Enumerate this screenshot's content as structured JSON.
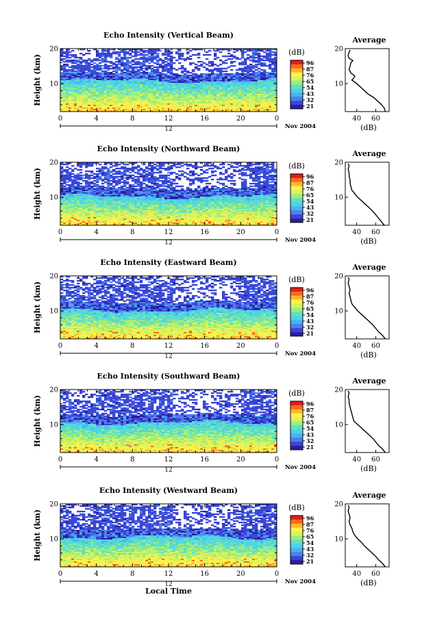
{
  "chart_data": [
    {
      "type": "heatmap",
      "title": "Echo Intensity (Vertical Beam)",
      "ylabel": "Height (km)",
      "x_ticks": [
        "0",
        "4",
        "8",
        "12",
        "16",
        "20",
        "0"
      ],
      "y_ticks": [
        "10",
        "20"
      ],
      "xlim": [
        0,
        24
      ],
      "ylim": [
        2,
        20
      ],
      "colorbar": {
        "label": "(dB)",
        "ticks": [
          "96",
          "87",
          "76",
          "65",
          "54",
          "43",
          "32",
          "21"
        ]
      },
      "date_label": "12",
      "month_label": "Nov 2004",
      "layer": {
        "bottom_km": 9.5,
        "boundary_km": 10.8,
        "gap_km": 13.0,
        "top_km": 20
      },
      "average_profile": {
        "title": "Average",
        "xlabel": "(dB)",
        "x_ticks": [
          "40",
          "60"
        ],
        "y_ticks": [
          "10",
          "20"
        ],
        "xlim": [
          28,
          74
        ],
        "ylim": [
          2,
          20
        ],
        "height_km": [
          2.0,
          3.0,
          4.0,
          5.0,
          6.0,
          7.0,
          8.0,
          9.0,
          10.0,
          10.6,
          11.0,
          11.6,
          12.2,
          13.0,
          14.0,
          15.0,
          16.0,
          16.6,
          17.2,
          18.0,
          19.0,
          19.6
        ],
        "intensity_db": [
          70,
          69,
          66,
          62,
          58,
          52,
          48,
          44,
          40,
          37,
          35,
          37,
          38,
          34,
          32,
          33,
          34,
          36,
          32,
          31,
          32,
          33
        ]
      }
    },
    {
      "type": "heatmap",
      "title": "Echo Intensity (Northward Beam)",
      "ylabel": "Height (km)",
      "x_ticks": [
        "0",
        "4",
        "8",
        "12",
        "16",
        "20",
        "0"
      ],
      "y_ticks": [
        "10",
        "20"
      ],
      "xlim": [
        0,
        24
      ],
      "ylim": [
        2,
        20
      ],
      "colorbar": {
        "label": "(dB)",
        "ticks": [
          "96",
          "87",
          "76",
          "65",
          "54",
          "43",
          "32",
          "21"
        ]
      },
      "date_label": "12",
      "month_label": "Nov 2004",
      "layer": {
        "bottom_km": 8.5,
        "boundary_km": 10.2,
        "gap_km": 12.5,
        "top_km": 18.5
      },
      "average_profile": {
        "title": "Average",
        "xlabel": "(dB)",
        "x_ticks": [
          "40",
          "60"
        ],
        "y_ticks": [
          "10",
          "20"
        ],
        "xlim": [
          28,
          74
        ],
        "ylim": [
          2,
          20
        ],
        "height_km": [
          2.0,
          3.0,
          4.0,
          5.0,
          6.0,
          7.0,
          8.0,
          9.0,
          10.0,
          11.0,
          12.0,
          13.0,
          14.0,
          15.0,
          16.0,
          17.0,
          18.0,
          19.0,
          19.6
        ],
        "intensity_db": [
          69,
          66,
          63,
          60,
          57,
          53,
          49,
          45,
          41,
          38,
          35,
          34,
          33,
          33,
          32,
          32,
          31,
          32,
          31
        ]
      }
    },
    {
      "type": "heatmap",
      "title": "Echo Intensity (Eastward Beam)",
      "ylabel": "Height (km)",
      "x_ticks": [
        "0",
        "4",
        "8",
        "12",
        "16",
        "20",
        "0"
      ],
      "y_ticks": [
        "10",
        "20"
      ],
      "xlim": [
        0,
        24
      ],
      "ylim": [
        2,
        20
      ],
      "colorbar": {
        "label": "(dB)",
        "ticks": [
          "96",
          "87",
          "76",
          "65",
          "54",
          "43",
          "32",
          "21"
        ]
      },
      "date_label": "12",
      "month_label": "Nov 2004",
      "layer": {
        "bottom_km": 8.5,
        "boundary_km": 10.2,
        "gap_km": 12.5,
        "top_km": 19
      },
      "average_profile": {
        "title": "Average",
        "xlabel": "(dB)",
        "x_ticks": [
          "40",
          "60"
        ],
        "y_ticks": [
          "10",
          "20"
        ],
        "xlim": [
          28,
          74
        ],
        "ylim": [
          2,
          20
        ],
        "height_km": [
          2.0,
          3.0,
          4.0,
          5.0,
          6.0,
          7.0,
          8.0,
          9.0,
          10.0,
          11.0,
          12.0,
          13.0,
          14.0,
          15.0,
          16.0,
          17.0,
          18.0,
          19.0,
          19.6
        ],
        "intensity_db": [
          70,
          67,
          63,
          60,
          57,
          53,
          49,
          45,
          41,
          38,
          35,
          34,
          33,
          32,
          33,
          32,
          31,
          32,
          31
        ]
      }
    },
    {
      "type": "heatmap",
      "title": "Echo Intensity (Southward Beam)",
      "ylabel": "Height (km)",
      "x_ticks": [
        "0",
        "4",
        "8",
        "12",
        "16",
        "20",
        "0"
      ],
      "y_ticks": [
        "10",
        "20"
      ],
      "xlim": [
        0,
        24
      ],
      "ylim": [
        2,
        20
      ],
      "colorbar": {
        "label": "(dB)",
        "ticks": [
          "96",
          "87",
          "76",
          "65",
          "54",
          "43",
          "32",
          "21"
        ]
      },
      "date_label": "12",
      "month_label": "Nov 2004",
      "layer": {
        "bottom_km": 9,
        "boundary_km": 10.5,
        "gap_km": 12.8,
        "top_km": 20
      },
      "average_profile": {
        "title": "Average",
        "xlabel": "(dB)",
        "x_ticks": [
          "40",
          "60"
        ],
        "y_ticks": [
          "10",
          "20"
        ],
        "xlim": [
          28,
          74
        ],
        "ylim": [
          2,
          20
        ],
        "height_km": [
          2.0,
          3.0,
          4.0,
          5.0,
          6.0,
          7.0,
          8.0,
          9.0,
          10.0,
          11.0,
          12.0,
          13.0,
          14.0,
          15.0,
          16.0,
          17.0,
          18.0,
          19.0,
          19.6
        ],
        "intensity_db": [
          70,
          67,
          63,
          60,
          57,
          53,
          49,
          45,
          41,
          37,
          36,
          35,
          34,
          33,
          32,
          32,
          31,
          32,
          31
        ]
      }
    },
    {
      "type": "heatmap",
      "title": "Echo Intensity (Westward Beam)",
      "ylabel": "Height (km)",
      "x_ticks": [
        "0",
        "4",
        "8",
        "12",
        "16",
        "20",
        "0"
      ],
      "y_ticks": [
        "10",
        "20"
      ],
      "xlim": [
        0,
        24
      ],
      "ylim": [
        2,
        20
      ],
      "colorbar": {
        "label": "(dB)",
        "ticks": [
          "96",
          "87",
          "76",
          "65",
          "54",
          "43",
          "32",
          "21"
        ]
      },
      "date_label": "12",
      "month_label": "Nov 2004",
      "xlabel": "Local Time",
      "layer": {
        "bottom_km": 9,
        "boundary_km": 10.5,
        "gap_km": 12.8,
        "top_km": 19.5
      },
      "average_profile": {
        "title": "Average",
        "xlabel": "(dB)",
        "x_ticks": [
          "40",
          "60"
        ],
        "y_ticks": [
          "10",
          "20"
        ],
        "xlim": [
          28,
          74
        ],
        "ylim": [
          2,
          20
        ],
        "height_km": [
          2.0,
          3.0,
          4.0,
          5.0,
          6.0,
          7.0,
          8.0,
          9.0,
          10.0,
          11.0,
          12.0,
          13.0,
          14.0,
          15.0,
          16.0,
          17.0,
          18.0,
          19.0,
          19.6
        ],
        "intensity_db": [
          70,
          67,
          63,
          60,
          56,
          52,
          48,
          45,
          41,
          38,
          36,
          35,
          33,
          32,
          33,
          32,
          31,
          32,
          31
        ]
      }
    }
  ]
}
